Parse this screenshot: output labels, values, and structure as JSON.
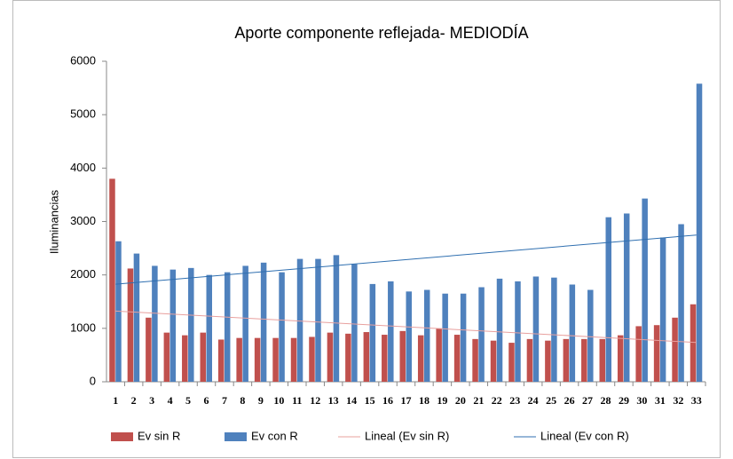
{
  "chart_data": {
    "type": "bar",
    "title": "Aporte componente reflejada- MEDIODÍA",
    "y_label": "Iluminancias",
    "categories": [
      "1",
      "2",
      "3",
      "4",
      "5",
      "6",
      "7",
      "8",
      "9",
      "10",
      "11",
      "12",
      "13",
      "14",
      "15",
      "16",
      "17",
      "18",
      "19",
      "20",
      "21",
      "22",
      "23",
      "24",
      "25",
      "26",
      "27",
      "28",
      "29",
      "30",
      "31",
      "32",
      "33"
    ],
    "series": [
      {
        "name": "Ev sin R",
        "color": "#c0504d",
        "values": [
          3800,
          2120,
          1200,
          920,
          870,
          920,
          790,
          820,
          820,
          820,
          820,
          840,
          920,
          900,
          930,
          880,
          950,
          870,
          1000,
          880,
          800,
          770,
          730,
          800,
          770,
          800,
          800,
          800,
          870,
          1040,
          1060,
          1200,
          1450
        ],
        "trendline": {
          "name": "Lineal (Ev sin R)",
          "color": "#e8a09e"
        }
      },
      {
        "name": "Ev con R",
        "color": "#4f81bd",
        "values": [
          2630,
          2400,
          2170,
          2100,
          2130,
          2000,
          2050,
          2170,
          2230,
          2050,
          2300,
          2300,
          2370,
          2200,
          1830,
          1880,
          1690,
          1720,
          1650,
          1650,
          1770,
          1930,
          1880,
          1970,
          1950,
          1820,
          1720,
          3080,
          3150,
          3430,
          2700,
          2950,
          5580
        ],
        "trendline": {
          "name": "Lineal (Ev con R)",
          "color": "#2f6fb0"
        }
      }
    ],
    "ylim": [
      0,
      6000
    ],
    "yticks": [
      0,
      1000,
      2000,
      3000,
      4000,
      5000,
      6000
    ],
    "grid": false
  }
}
